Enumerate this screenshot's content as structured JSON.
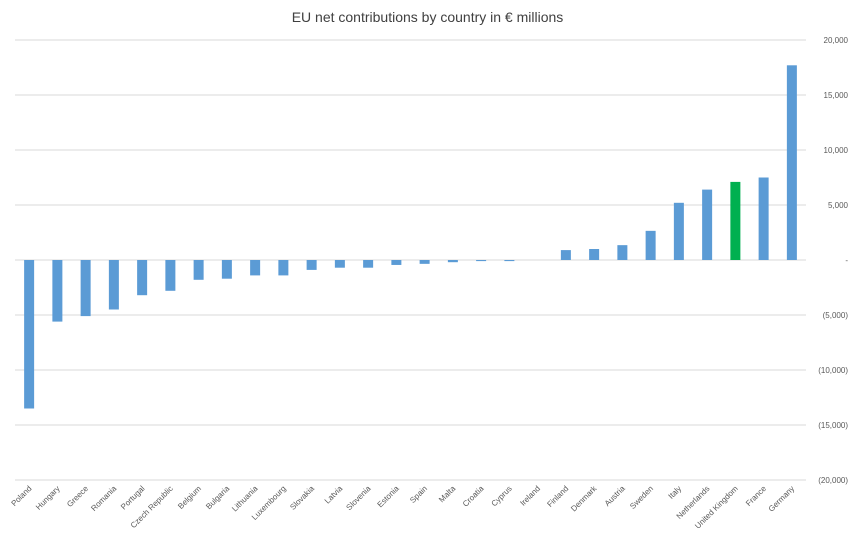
{
  "chart_data": {
    "type": "bar",
    "title": "EU net contributions by country in € millions",
    "categories": [
      "Poland",
      "Hungary",
      "Greece",
      "Romania",
      "Portugal",
      "Czech Republic",
      "Belgium",
      "Bulgaria",
      "Lithuania",
      "Luxembourg",
      "Slovakia",
      "Latvia",
      "Slovenia",
      "Estonia",
      "Spain",
      "Malta",
      "Croatia",
      "Cyprus",
      "Ireland",
      "Finland",
      "Denmark",
      "Austria",
      "Sweden",
      "Italy",
      "Netherlands",
      "United Kingdom",
      "France",
      "Germany"
    ],
    "values": [
      -13500,
      -5600,
      -5100,
      -4500,
      -3200,
      -2800,
      -1800,
      -1700,
      -1400,
      -1400,
      -900,
      -700,
      -700,
      -450,
      -350,
      -200,
      -100,
      -100,
      0,
      900,
      1000,
      1350,
      2650,
      5200,
      6400,
      7100,
      7500,
      17700
    ],
    "highlight_index": 25,
    "ylim": [
      -20000,
      20000
    ],
    "yticks": [
      20000,
      15000,
      10000,
      5000,
      0,
      -5000,
      -10000,
      -15000,
      -20000
    ],
    "ytick_labels": [
      "20,000",
      "15,000",
      "10,000",
      "5,000",
      "-",
      "(5,000)",
      "(10,000)",
      "(15,000)",
      "(20,000)"
    ],
    "colors": {
      "bar": "#5b9bd5",
      "highlight": "#00b050",
      "grid": "#d9d9d9"
    },
    "grid": true
  }
}
